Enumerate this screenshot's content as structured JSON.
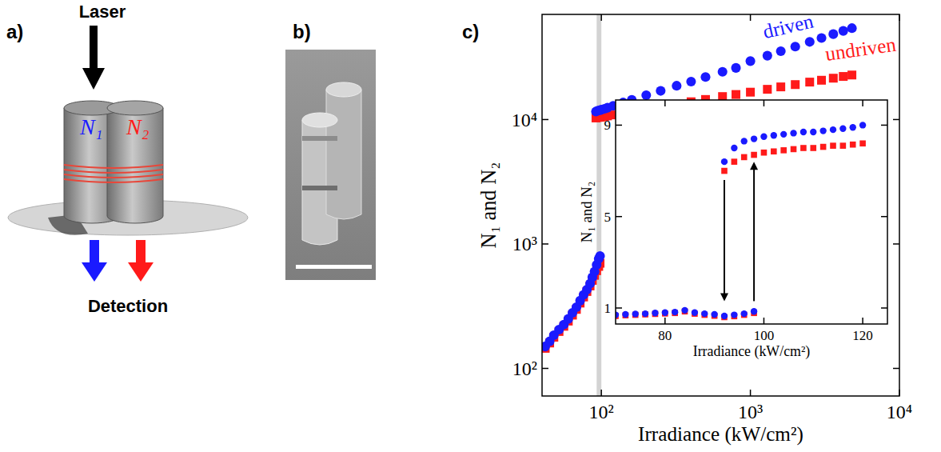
{
  "panel_a": {
    "letter": "a)",
    "laser": "Laser",
    "n1": "N₁",
    "n2": "N₂",
    "detection": "Detection"
  },
  "panel_b": {
    "letter": "b)"
  },
  "chart_data": [
    {
      "type": "scatter",
      "panel_label": "c)",
      "log": true,
      "x_label": "Irradiance (kW/cm²)",
      "y_label": "N₁ and N₂",
      "xlim": [
        40,
        10000
      ],
      "ylim": [
        60,
        70000
      ],
      "xticks": [
        {
          "value": 100,
          "label": "10²"
        },
        {
          "value": 1000,
          "label": "10³"
        },
        {
          "value": 10000,
          "label": "10⁴"
        }
      ],
      "yticks": [
        {
          "value": 100,
          "label": "10²"
        },
        {
          "value": 1000,
          "label": "10³"
        },
        {
          "value": 10000,
          "label": "10⁴"
        }
      ],
      "highlight_x": [
        93,
        100
      ],
      "series": [
        {
          "name": "driven",
          "color": "#1a1aff",
          "marker": "circle",
          "x": [
            42,
            45,
            48,
            52,
            56,
            60,
            64,
            68,
            72,
            76,
            80,
            84,
            87,
            90,
            93,
            96,
            98,
            92,
            95,
            98,
            100,
            105,
            110,
            120,
            140,
            160,
            200,
            250,
            320,
            400,
            500,
            650,
            800,
            1000,
            1300,
            1600,
            2000,
            2500,
            3000,
            3600,
            4200,
            4800
          ],
          "values": [
            150,
            165,
            185,
            205,
            225,
            250,
            280,
            310,
            350,
            390,
            430,
            480,
            540,
            600,
            680,
            760,
            800,
            11600,
            11800,
            11900,
            12000,
            12200,
            12450,
            12900,
            13700,
            14400,
            15700,
            17000,
            18700,
            20200,
            22000,
            24200,
            26000,
            29500,
            32600,
            35400,
            38600,
            42100,
            45200,
            48600,
            51600,
            54300
          ]
        },
        {
          "name": "undriven",
          "color": "#ff1a1a",
          "marker": "square",
          "x": [
            42,
            45,
            48,
            52,
            56,
            60,
            64,
            68,
            72,
            76,
            80,
            84,
            87,
            90,
            93,
            96,
            98,
            92,
            95,
            98,
            100,
            105,
            110,
            120,
            140,
            160,
            200,
            250,
            320,
            400,
            500,
            650,
            800,
            1000,
            1300,
            1600,
            2000,
            2500,
            3000,
            3600,
            4200,
            4800
          ],
          "values": [
            145,
            160,
            178,
            198,
            218,
            240,
            268,
            298,
            335,
            375,
            415,
            460,
            510,
            560,
            610,
            660,
            700,
            10300,
            10400,
            10450,
            10500,
            10600,
            10700,
            10900,
            11200,
            11500,
            12100,
            12600,
            13250,
            13900,
            14500,
            15300,
            15900,
            16600,
            17500,
            18300,
            19100,
            20000,
            20700,
            21500,
            22200,
            22800
          ]
        }
      ]
    },
    {
      "type": "scatter",
      "x_label": "Irradiance (kW/cm²)",
      "y_label": "N₁ and N₂",
      "xlim": [
        70,
        125
      ],
      "ylim": [
        0.3,
        10.1
      ],
      "xticks": [
        80,
        100,
        120
      ],
      "yticks": [
        1,
        5,
        9
      ],
      "annotations": [
        {
          "x": 92,
          "from": 6.6,
          "to": 1.3
        },
        {
          "x": 98,
          "from": 1.3,
          "to": 7.4
        }
      ],
      "series": [
        {
          "color": "#1a1aff",
          "marker": "circle",
          "x": [
            70,
            72,
            74,
            76,
            78,
            80,
            82,
            84,
            86,
            88,
            90,
            92,
            94,
            96,
            98,
            92,
            94,
            96,
            98,
            100,
            102,
            104,
            106,
            108,
            110,
            112,
            114,
            116,
            118,
            120
          ],
          "values": [
            0.7,
            0.72,
            0.74,
            0.75,
            0.78,
            0.8,
            0.82,
            0.9,
            0.8,
            0.75,
            0.72,
            0.65,
            0.7,
            0.75,
            0.85,
            7.4,
            8.0,
            8.3,
            8.4,
            8.5,
            8.55,
            8.6,
            8.65,
            8.7,
            8.7,
            8.75,
            8.8,
            8.85,
            8.9,
            9.0
          ]
        },
        {
          "color": "#ff1a1a",
          "marker": "square",
          "x": [
            70,
            72,
            74,
            76,
            78,
            80,
            82,
            84,
            86,
            88,
            90,
            92,
            94,
            96,
            98,
            92,
            94,
            96,
            98,
            100,
            102,
            104,
            106,
            108,
            110,
            112,
            114,
            116,
            118,
            120
          ],
          "values": [
            0.65,
            0.68,
            0.7,
            0.72,
            0.74,
            0.76,
            0.78,
            0.85,
            0.75,
            0.7,
            0.66,
            0.6,
            0.64,
            0.7,
            0.78,
            7.0,
            7.4,
            7.6,
            7.7,
            7.8,
            7.85,
            7.9,
            7.95,
            8.0,
            8.0,
            8.05,
            8.1,
            8.1,
            8.15,
            8.2
          ]
        }
      ]
    }
  ]
}
